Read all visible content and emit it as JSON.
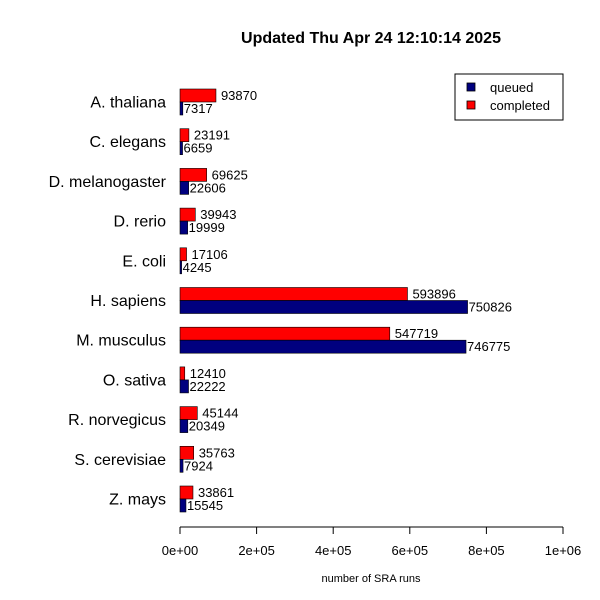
{
  "chart_data": {
    "type": "bar",
    "orientation": "horizontal",
    "title": "Updated Thu Apr 24 12:10:14 2025",
    "xlabel": "number of SRA runs",
    "ylabel": "",
    "xlim": [
      0,
      1000000
    ],
    "xticks": [
      0,
      200000,
      400000,
      600000,
      800000,
      1000000
    ],
    "xtick_labels": [
      "0e+00",
      "2e+05",
      "4e+05",
      "6e+05",
      "8e+05",
      "1e+06"
    ],
    "grid": false,
    "legend_position": "top-right",
    "categories": [
      "A. thaliana",
      "C. elegans",
      "D. melanogaster",
      "D. rerio",
      "E. coli",
      "H. sapiens",
      "M. musculus",
      "O. sativa",
      "R. norvegicus",
      "S. cerevisiae",
      "Z. mays"
    ],
    "series": [
      {
        "name": "queued",
        "color": "#00007f",
        "values": [
          7317,
          6659,
          22606,
          19999,
          4245,
          750826,
          746775,
          22222,
          20349,
          7924,
          15545
        ]
      },
      {
        "name": "completed",
        "color": "#ff0000",
        "values": [
          93870,
          23191,
          69625,
          39943,
          17106,
          593896,
          547719,
          12410,
          45144,
          35763,
          33861
        ]
      }
    ]
  }
}
